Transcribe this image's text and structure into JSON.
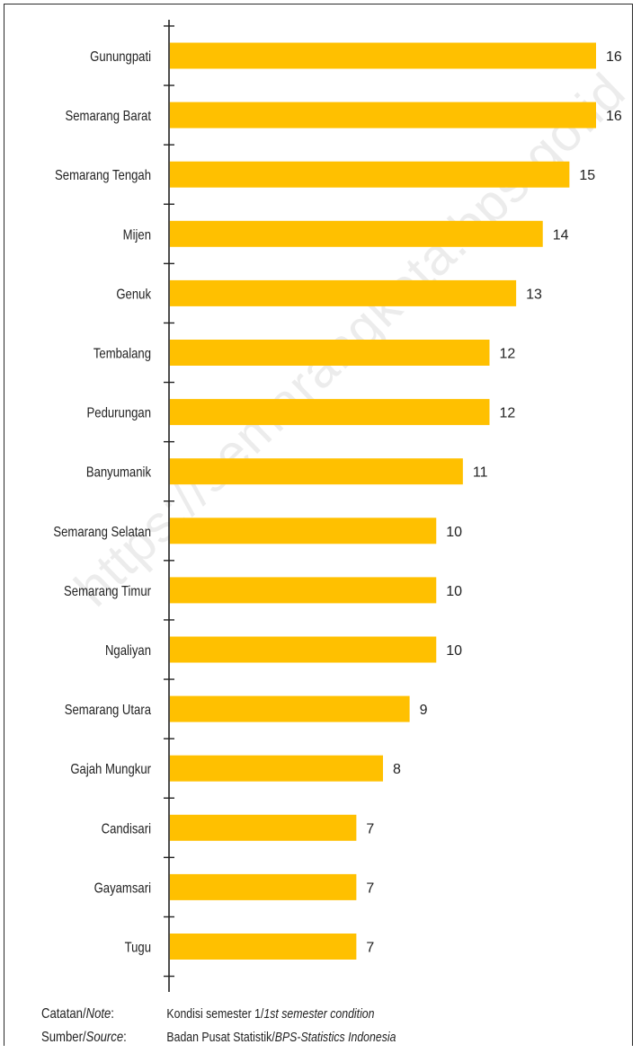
{
  "chart_data": {
    "type": "bar",
    "orientation": "horizontal",
    "categories": [
      "Gunungpati",
      "Semarang Barat",
      "Semarang Tengah",
      "Mijen",
      "Genuk",
      "Tembalang",
      "Pedurungan",
      "Banyumanik",
      "Semarang Selatan",
      "Semarang Timur",
      "Ngaliyan",
      "Semarang Utara",
      "Gajah Mungkur",
      "Candisari",
      "Gayamsari",
      "Tugu"
    ],
    "values": [
      16,
      16,
      15,
      14,
      13,
      12,
      12,
      11,
      10,
      10,
      10,
      9,
      8,
      7,
      7,
      7
    ],
    "xlim": [
      0,
      16
    ],
    "bar_color": "#ffc000",
    "grid": false,
    "legend": "none"
  },
  "watermark": "https://semarangkota.bps.go.id",
  "notes": {
    "note_label": "Catatan/",
    "note_label_it": "Note",
    "note_colon": ":",
    "note_value": "Kondisi semester 1/",
    "note_value_it": "1st semester condition",
    "source_label": "Sumber/",
    "source_label_it": "Source",
    "source_colon": ":",
    "source_value": "Badan Pusat Statistik/",
    "source_value_it": "BPS-Statistics Indonesia"
  }
}
